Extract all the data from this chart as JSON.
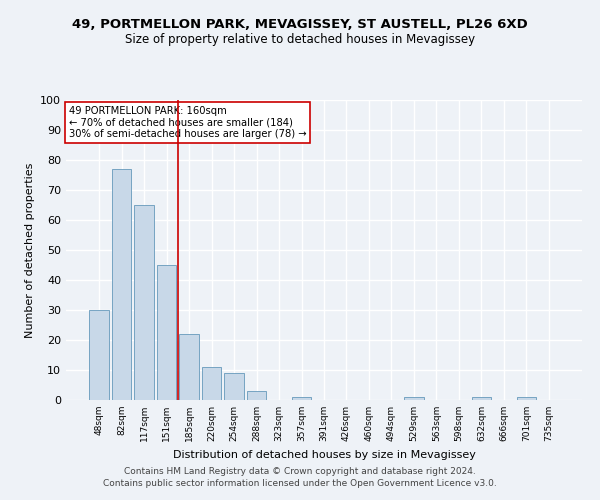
{
  "title1": "49, PORTMELLON PARK, MEVAGISSEY, ST AUSTELL, PL26 6XD",
  "title2": "Size of property relative to detached houses in Mevagissey",
  "xlabel": "Distribution of detached houses by size in Mevagissey",
  "ylabel": "Number of detached properties",
  "categories": [
    "48sqm",
    "82sqm",
    "117sqm",
    "151sqm",
    "185sqm",
    "220sqm",
    "254sqm",
    "288sqm",
    "323sqm",
    "357sqm",
    "391sqm",
    "426sqm",
    "460sqm",
    "494sqm",
    "529sqm",
    "563sqm",
    "598sqm",
    "632sqm",
    "666sqm",
    "701sqm",
    "735sqm"
  ],
  "values": [
    30,
    77,
    65,
    45,
    22,
    11,
    9,
    3,
    0,
    1,
    0,
    0,
    0,
    0,
    1,
    0,
    0,
    1,
    0,
    1,
    0
  ],
  "bar_color": "#c8d8e8",
  "bar_edge_color": "#6699bb",
  "property_line_x": 3.5,
  "property_line_color": "#cc0000",
  "annotation_text": "49 PORTMELLON PARK: 160sqm\n← 70% of detached houses are smaller (184)\n30% of semi-detached houses are larger (78) →",
  "annotation_box_color": "#ffffff",
  "annotation_box_edge_color": "#cc0000",
  "ylim": [
    0,
    100
  ],
  "yticks": [
    0,
    10,
    20,
    30,
    40,
    50,
    60,
    70,
    80,
    90,
    100
  ],
  "footer1": "Contains HM Land Registry data © Crown copyright and database right 2024.",
  "footer2": "Contains public sector information licensed under the Open Government Licence v3.0.",
  "background_color": "#eef2f7",
  "grid_color": "#ffffff"
}
